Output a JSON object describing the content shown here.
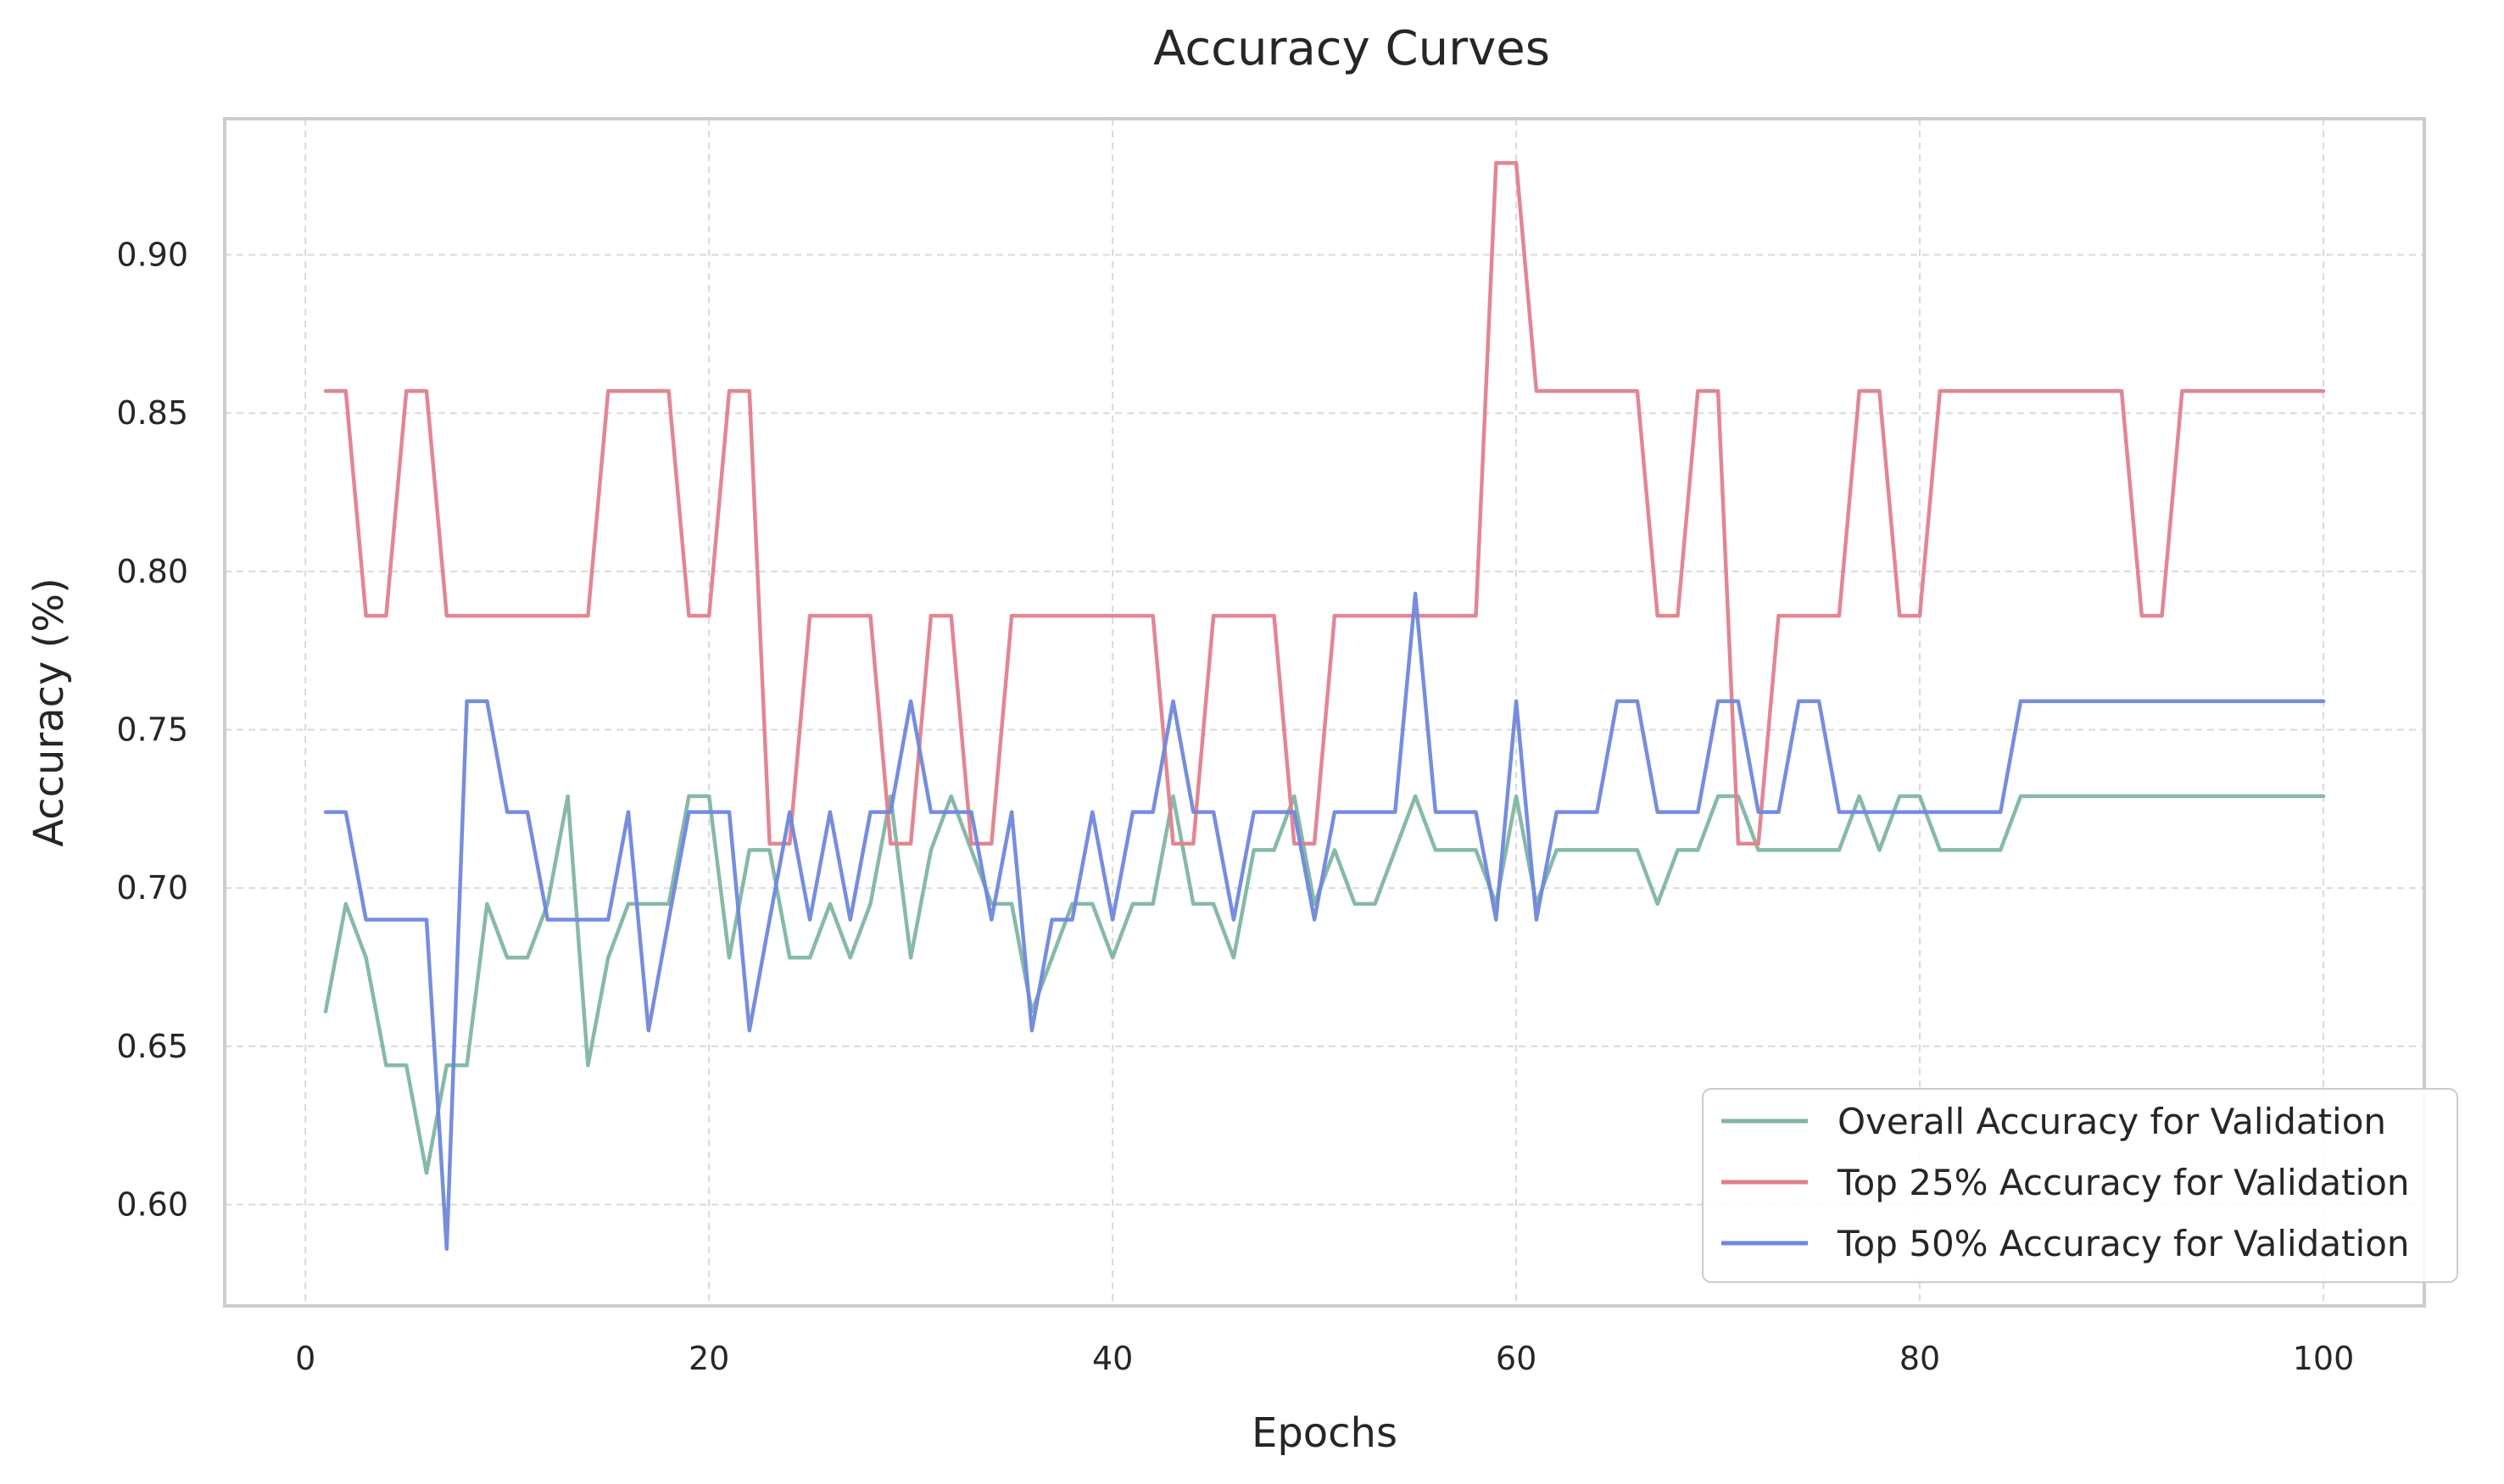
{
  "chart_data": {
    "type": "line",
    "title": "Accuracy Curves",
    "xlabel": "Epochs",
    "ylabel": "Accuracy (%)",
    "xlim": [
      -4,
      105
    ],
    "ylim": [
      0.568,
      0.943
    ],
    "xticks": [
      0,
      20,
      40,
      60,
      80,
      100
    ],
    "xtick_labels": [
      "0",
      "20",
      "40",
      "60",
      "80",
      "100"
    ],
    "yticks": [
      0.6,
      0.65,
      0.7,
      0.75,
      0.8,
      0.85,
      0.9
    ],
    "ytick_labels": [
      "0.60",
      "0.65",
      "0.70",
      "0.75",
      "0.80",
      "0.85",
      "0.90"
    ],
    "grid": true,
    "legend_position": "lower-right",
    "series": [
      {
        "name": "Overall Accuracy for Validation",
        "color": "#7fb5a3",
        "x": [
          1,
          2,
          3,
          4,
          5,
          6,
          7,
          8,
          9,
          10,
          11,
          12,
          13,
          14,
          15,
          16,
          17,
          18,
          19,
          20,
          21,
          22,
          23,
          24,
          25,
          26,
          27,
          28,
          29,
          30,
          31,
          32,
          33,
          34,
          35,
          36,
          37,
          38,
          39,
          40,
          41,
          42,
          43,
          44,
          45,
          46,
          47,
          48,
          49,
          50,
          51,
          52,
          53,
          54,
          55,
          56,
          57,
          58,
          59,
          60,
          61,
          62,
          63,
          64,
          65,
          66,
          67,
          68,
          69,
          70,
          71,
          72,
          73,
          74,
          75,
          76,
          77,
          78,
          79,
          80,
          81,
          82,
          83,
          84,
          85,
          86,
          87,
          88,
          89,
          90,
          91,
          92,
          93,
          94,
          95,
          96,
          97,
          98,
          99,
          100
        ],
        "values": [
          0.661,
          0.695,
          0.678,
          0.644,
          0.644,
          0.61,
          0.644,
          0.644,
          0.695,
          0.678,
          0.678,
          0.695,
          0.729,
          0.644,
          0.678,
          0.695,
          0.695,
          0.695,
          0.729,
          0.729,
          0.678,
          0.712,
          0.712,
          0.678,
          0.678,
          0.695,
          0.678,
          0.695,
          0.729,
          0.678,
          0.712,
          0.729,
          0.712,
          0.695,
          0.695,
          0.661,
          0.678,
          0.695,
          0.695,
          0.678,
          0.695,
          0.695,
          0.729,
          0.695,
          0.695,
          0.678,
          0.712,
          0.712,
          0.729,
          0.695,
          0.712,
          0.695,
          0.695,
          0.712,
          0.729,
          0.712,
          0.712,
          0.712,
          0.695,
          0.729,
          0.695,
          0.712,
          0.712,
          0.712,
          0.712,
          0.712,
          0.695,
          0.712,
          0.712,
          0.729,
          0.729,
          0.712,
          0.712,
          0.712,
          0.712,
          0.712,
          0.729,
          0.712,
          0.729,
          0.729,
          0.712,
          0.712,
          0.712,
          0.712,
          0.729,
          0.729,
          0.729,
          0.729,
          0.729,
          0.729,
          0.729,
          0.729,
          0.729,
          0.729,
          0.729,
          0.729,
          0.729,
          0.729,
          0.729,
          0.729
        ]
      },
      {
        "name": "Top 25% Accuracy for Validation",
        "color": "#e07f8c",
        "x": [
          1,
          2,
          3,
          4,
          5,
          6,
          7,
          8,
          9,
          10,
          11,
          12,
          13,
          14,
          15,
          16,
          17,
          18,
          19,
          20,
          21,
          22,
          23,
          24,
          25,
          26,
          27,
          28,
          29,
          30,
          31,
          32,
          33,
          34,
          35,
          36,
          37,
          38,
          39,
          40,
          41,
          42,
          43,
          44,
          45,
          46,
          47,
          48,
          49,
          50,
          51,
          52,
          53,
          54,
          55,
          56,
          57,
          58,
          59,
          60,
          61,
          62,
          63,
          64,
          65,
          66,
          67,
          68,
          69,
          70,
          71,
          72,
          73,
          74,
          75,
          76,
          77,
          78,
          79,
          80,
          81,
          82,
          83,
          84,
          85,
          86,
          87,
          88,
          89,
          90,
          91,
          92,
          93,
          94,
          95,
          96,
          97,
          98,
          99,
          100
        ],
        "values": [
          0.857,
          0.857,
          0.786,
          0.786,
          0.857,
          0.857,
          0.786,
          0.786,
          0.786,
          0.786,
          0.786,
          0.786,
          0.786,
          0.786,
          0.857,
          0.857,
          0.857,
          0.857,
          0.786,
          0.786,
          0.857,
          0.857,
          0.714,
          0.714,
          0.786,
          0.786,
          0.786,
          0.786,
          0.714,
          0.714,
          0.786,
          0.786,
          0.714,
          0.714,
          0.786,
          0.786,
          0.786,
          0.786,
          0.786,
          0.786,
          0.786,
          0.786,
          0.714,
          0.714,
          0.786,
          0.786,
          0.786,
          0.786,
          0.714,
          0.714,
          0.786,
          0.786,
          0.786,
          0.786,
          0.786,
          0.786,
          0.786,
          0.786,
          0.929,
          0.929,
          0.857,
          0.857,
          0.857,
          0.857,
          0.857,
          0.857,
          0.786,
          0.786,
          0.857,
          0.857,
          0.714,
          0.714,
          0.786,
          0.786,
          0.786,
          0.786,
          0.857,
          0.857,
          0.786,
          0.786,
          0.857,
          0.857,
          0.857,
          0.857,
          0.857,
          0.857,
          0.857,
          0.857,
          0.857,
          0.857,
          0.786,
          0.786,
          0.857,
          0.857,
          0.857,
          0.857,
          0.857,
          0.857,
          0.857,
          0.857
        ]
      },
      {
        "name": "Top 50% Accuracy for Validation",
        "color": "#6f87dc",
        "x": [
          1,
          2,
          3,
          4,
          5,
          6,
          7,
          8,
          9,
          10,
          11,
          12,
          13,
          14,
          15,
          16,
          17,
          18,
          19,
          20,
          21,
          22,
          23,
          24,
          25,
          26,
          27,
          28,
          29,
          30,
          31,
          32,
          33,
          34,
          35,
          36,
          37,
          38,
          39,
          40,
          41,
          42,
          43,
          44,
          45,
          46,
          47,
          48,
          49,
          50,
          51,
          52,
          53,
          54,
          55,
          56,
          57,
          58,
          59,
          60,
          61,
          62,
          63,
          64,
          65,
          66,
          67,
          68,
          69,
          70,
          71,
          72,
          73,
          74,
          75,
          76,
          77,
          78,
          79,
          80,
          81,
          82,
          83,
          84,
          85,
          86,
          87,
          88,
          89,
          90,
          91,
          92,
          93,
          94,
          95,
          96,
          97,
          98,
          99,
          100
        ],
        "values": [
          0.724,
          0.724,
          0.69,
          0.69,
          0.69,
          0.69,
          0.586,
          0.759,
          0.759,
          0.724,
          0.724,
          0.69,
          0.69,
          0.69,
          0.69,
          0.724,
          0.655,
          0.69,
          0.724,
          0.724,
          0.724,
          0.655,
          0.69,
          0.724,
          0.69,
          0.724,
          0.69,
          0.724,
          0.724,
          0.759,
          0.724,
          0.724,
          0.724,
          0.69,
          0.724,
          0.655,
          0.69,
          0.69,
          0.724,
          0.69,
          0.724,
          0.724,
          0.759,
          0.724,
          0.724,
          0.69,
          0.724,
          0.724,
          0.724,
          0.69,
          0.724,
          0.724,
          0.724,
          0.724,
          0.793,
          0.724,
          0.724,
          0.724,
          0.69,
          0.759,
          0.69,
          0.724,
          0.724,
          0.724,
          0.759,
          0.759,
          0.724,
          0.724,
          0.724,
          0.759,
          0.759,
          0.724,
          0.724,
          0.759,
          0.759,
          0.724,
          0.724,
          0.724,
          0.724,
          0.724,
          0.724,
          0.724,
          0.724,
          0.724,
          0.759,
          0.759,
          0.759,
          0.759,
          0.759,
          0.759,
          0.759,
          0.759,
          0.759,
          0.759,
          0.759,
          0.759,
          0.759,
          0.759,
          0.759,
          0.759
        ]
      }
    ]
  }
}
